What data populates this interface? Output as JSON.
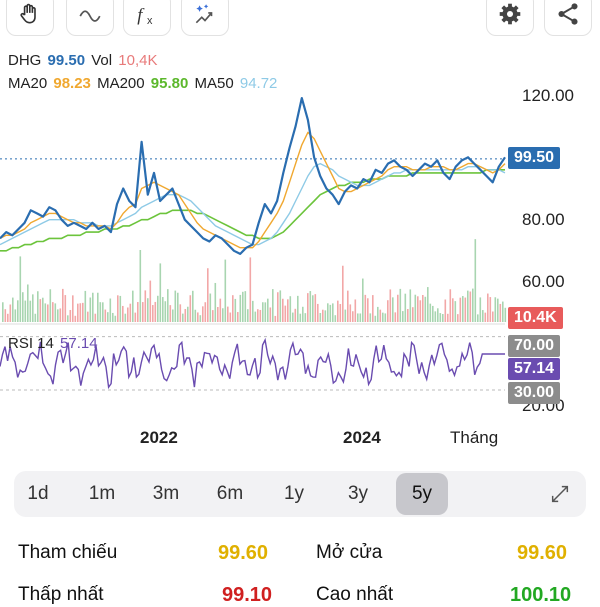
{
  "toolbar": {
    "tools": [
      "hand-tool",
      "line-tool",
      "function-tool",
      "magic-tool"
    ],
    "actions": [
      "settings",
      "share"
    ]
  },
  "legend": {
    "symbol": "DHG",
    "price": "99.50",
    "vol_label": "Vol",
    "vol": "10,4K",
    "ma20_label": "MA20",
    "ma20": "98.23",
    "ma200_label": "MA200",
    "ma200": "95.80",
    "ma50_label": "MA50",
    "ma50": "94.72",
    "rsi_label": "RSI 14",
    "rsi": "57.14"
  },
  "colors": {
    "price": "#2a6db0",
    "ma20": "#f0a830",
    "ma200": "#6cc43c",
    "ma50": "#8ecae6",
    "vol_up": "#f2a7a7",
    "vol_down": "#a8d5b0",
    "rsi": "#6a4cb0",
    "tag_price": "#2a6db0",
    "tag_vol": "#e85b5b",
    "tag_rsi": "#6a4cb0",
    "tag_gray": "#8c8c8c"
  },
  "axis": {
    "price_ticks": [
      "120.00",
      "80.00",
      "60.00"
    ],
    "rsi_ticks": [
      "70.00",
      "30.00",
      "20.00"
    ],
    "x_ticks": [
      "2022",
      "2024",
      "Tháng"
    ]
  },
  "tags": {
    "price": "99.50",
    "vol": "10.4K",
    "rsi_high": "70.00",
    "rsi": "57.14",
    "rsi_low": "30.00"
  },
  "periods": [
    "1d",
    "1m",
    "3m",
    "6m",
    "1y",
    "3y",
    "5y"
  ],
  "active_period": "5y",
  "stats": {
    "ref_label": "Tham chiếu",
    "ref": "99.60",
    "open_label": "Mở cửa",
    "open": "99.60",
    "low_label": "Thấp nhất",
    "low": "99.10",
    "high_label": "Cao nhất",
    "high": "100.10"
  },
  "chart_data": {
    "type": "line",
    "title": "",
    "price_range": [
      50,
      125
    ],
    "rsi_range": [
      15,
      75
    ],
    "series": [
      {
        "name": "DHG",
        "values": [
          74,
          76,
          75,
          77,
          79,
          83,
          82,
          81,
          84,
          83,
          80,
          78,
          79,
          78,
          77,
          79,
          77,
          78,
          76,
          85,
          90,
          86,
          84,
          105,
          88,
          95,
          86,
          88,
          90,
          85,
          80,
          78,
          76,
          74,
          73,
          75,
          74,
          72,
          70,
          69,
          71,
          72,
          79,
          85,
          82,
          86,
          95,
          103,
          110,
          119,
          112,
          100,
          94,
          90,
          88,
          85,
          89,
          91,
          90,
          93,
          92,
          96,
          95,
          98,
          99,
          97,
          96,
          94,
          96,
          98,
          97,
          99,
          95,
          93,
          97,
          99,
          100,
          98,
          96,
          94,
          92,
          97,
          100
        ]
      },
      {
        "name": "MA20",
        "values": [
          74,
          75,
          75,
          76,
          77,
          79,
          80,
          81,
          82,
          82,
          81,
          80,
          79,
          79,
          78,
          78,
          78,
          78,
          77,
          79,
          82,
          84,
          85,
          90,
          91,
          92,
          91,
          90,
          89,
          88,
          85,
          82,
          79,
          77,
          76,
          75,
          74,
          73,
          72,
          71,
          71,
          71,
          73,
          76,
          79,
          82,
          86,
          92,
          98,
          104,
          108,
          106,
          102,
          98,
          94,
          90,
          89,
          89,
          90,
          91,
          92,
          93,
          94,
          96,
          97,
          97,
          97,
          96,
          96,
          96,
          97,
          97,
          97,
          96,
          96,
          97,
          98,
          98,
          97,
          96,
          95,
          96,
          98
        ]
      },
      {
        "name": "MA50",
        "values": [
          72,
          73,
          74,
          75,
          76,
          77,
          78,
          79,
          80,
          80,
          80,
          80,
          80,
          79,
          79,
          79,
          78,
          78,
          78,
          79,
          80,
          81,
          82,
          84,
          85,
          86,
          87,
          88,
          88,
          88,
          87,
          86,
          84,
          82,
          80,
          78,
          77,
          76,
          75,
          74,
          73,
          72,
          72,
          73,
          74,
          76,
          79,
          82,
          86,
          90,
          94,
          97,
          98,
          97,
          96,
          94,
          93,
          92,
          91,
          91,
          91,
          92,
          93,
          94,
          95,
          95,
          96,
          96,
          96,
          96,
          96,
          96,
          96,
          96,
          96,
          96,
          97,
          97,
          97,
          96,
          96,
          96,
          95
        ]
      },
      {
        "name": "MA200",
        "values": [
          70,
          70,
          71,
          71,
          72,
          72,
          73,
          73,
          74,
          74,
          74,
          75,
          75,
          75,
          76,
          76,
          76,
          77,
          77,
          77,
          78,
          78,
          79,
          80,
          80,
          81,
          82,
          82,
          83,
          83,
          83,
          83,
          82,
          82,
          81,
          80,
          79,
          78,
          77,
          76,
          75,
          75,
          74,
          74,
          74,
          75,
          76,
          78,
          80,
          82,
          84,
          86,
          88,
          89,
          90,
          91,
          91,
          92,
          92,
          92,
          93,
          93,
          93,
          94,
          94,
          94,
          94,
          95,
          95,
          95,
          95,
          95,
          95,
          95,
          95,
          95,
          95,
          95,
          95,
          96,
          96,
          96,
          96
        ]
      }
    ]
  }
}
